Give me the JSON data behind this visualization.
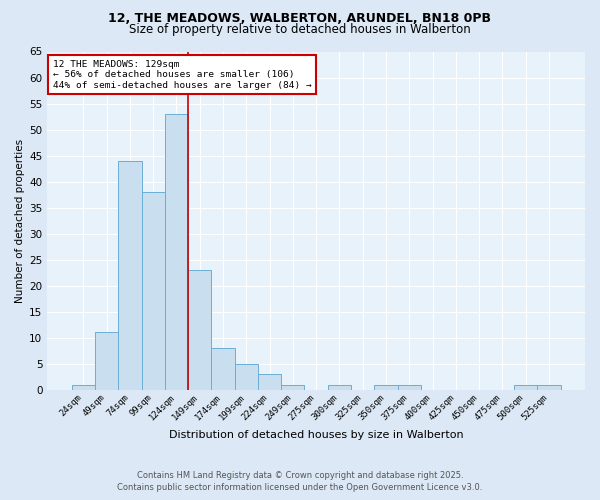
{
  "title_line1": "12, THE MEADOWS, WALBERTON, ARUNDEL, BN18 0PB",
  "title_line2": "Size of property relative to detached houses in Walberton",
  "xlabel": "Distribution of detached houses by size in Walberton",
  "ylabel": "Number of detached properties",
  "categories": [
    "24sqm",
    "49sqm",
    "74sqm",
    "99sqm",
    "124sqm",
    "149sqm",
    "174sqm",
    "199sqm",
    "224sqm",
    "249sqm",
    "275sqm",
    "300sqm",
    "325sqm",
    "350sqm",
    "375sqm",
    "400sqm",
    "425sqm",
    "450sqm",
    "475sqm",
    "500sqm",
    "525sqm"
  ],
  "values": [
    1,
    11,
    44,
    38,
    53,
    23,
    8,
    5,
    3,
    1,
    0,
    1,
    0,
    1,
    1,
    0,
    0,
    0,
    0,
    1,
    1
  ],
  "bar_color": "#c9dff0",
  "bar_edge_color": "#6aaed6",
  "reference_line_x": 4.5,
  "reference_label": "12 THE MEADOWS: 129sqm",
  "annotation_line1": "← 56% of detached houses are smaller (106)",
  "annotation_line2": "44% of semi-detached houses are larger (84) →",
  "annotation_box_color": "#ffffff",
  "annotation_box_edge_color": "#cc0000",
  "ylim": [
    0,
    65
  ],
  "yticks": [
    0,
    5,
    10,
    15,
    20,
    25,
    30,
    35,
    40,
    45,
    50,
    55,
    60,
    65
  ],
  "footer_line1": "Contains HM Land Registry data © Crown copyright and database right 2025.",
  "footer_line2": "Contains public sector information licensed under the Open Government Licence v3.0.",
  "bg_color": "#dce8f5",
  "plot_bg_color": "#e8f2fb",
  "red_line_color": "#cc0000",
  "grid_color": "#ffffff",
  "title1_fontsize": 9,
  "title2_fontsize": 8.5
}
